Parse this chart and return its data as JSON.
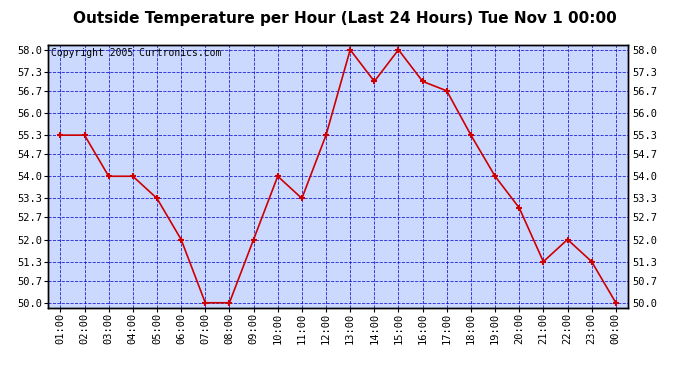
{
  "title": "Outside Temperature per Hour (Last 24 Hours) Tue Nov 1 00:00",
  "copyright": "Copyright 2005 Curtronics.com",
  "x_labels": [
    "01:00",
    "02:00",
    "03:00",
    "04:00",
    "05:00",
    "06:00",
    "07:00",
    "08:00",
    "09:00",
    "10:00",
    "11:00",
    "12:00",
    "13:00",
    "14:00",
    "15:00",
    "16:00",
    "17:00",
    "18:00",
    "19:00",
    "20:00",
    "21:00",
    "22:00",
    "23:00",
    "00:00"
  ],
  "y_values": [
    55.3,
    55.3,
    54.0,
    54.0,
    53.3,
    52.0,
    50.0,
    50.0,
    52.0,
    54.0,
    53.3,
    55.3,
    58.0,
    57.0,
    58.0,
    57.0,
    56.7,
    55.3,
    54.0,
    53.0,
    51.3,
    52.0,
    51.3,
    50.0
  ],
  "y_ticks": [
    50.0,
    50.7,
    51.3,
    52.0,
    52.7,
    53.3,
    54.0,
    54.7,
    55.3,
    56.0,
    56.7,
    57.3,
    58.0
  ],
  "y_min": 49.85,
  "y_max": 58.15,
  "line_color": "#cc0000",
  "marker_color": "#cc0000",
  "bg_color": "#ccd9ff",
  "grid_color": "#0000cc",
  "border_color": "#000000",
  "title_fontsize": 11,
  "copyright_fontsize": 7,
  "tick_fontsize": 7.5
}
